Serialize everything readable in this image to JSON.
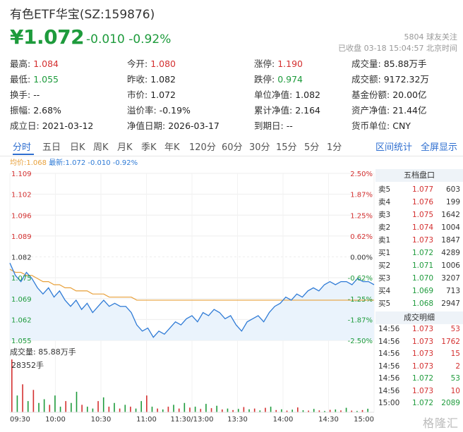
{
  "header": {
    "title": "有色ETF华宝(SZ:159876)",
    "price": "¥1.072",
    "change": "-0.010  -0.92%",
    "follow": "5804 球友关注",
    "status": "已收盘 03-18 15:04:57 北京时间"
  },
  "stats": [
    [
      {
        "label": "最高:",
        "value": "1.084",
        "color": "red"
      },
      {
        "label": "今开:",
        "value": "1.080",
        "color": "red"
      },
      {
        "label": "涨停:",
        "value": "1.190",
        "color": "red"
      },
      {
        "label": "成交量:",
        "value": "85.88万手",
        "color": ""
      }
    ],
    [
      {
        "label": "最低:",
        "value": "1.055",
        "color": "green"
      },
      {
        "label": "昨收:",
        "value": "1.082",
        "color": ""
      },
      {
        "label": "跌停:",
        "value": "0.974",
        "color": "green"
      },
      {
        "label": "成交额:",
        "value": "9172.32万",
        "color": ""
      }
    ],
    [
      {
        "label": "换手:",
        "value": "--",
        "color": ""
      },
      {
        "label": "市价:",
        "value": "1.072",
        "color": ""
      },
      {
        "label": "单位净值:",
        "value": "1.082",
        "color": ""
      },
      {
        "label": "基金份额:",
        "value": "20.00亿",
        "color": ""
      }
    ],
    [
      {
        "label": "振幅:",
        "value": "2.68%",
        "color": ""
      },
      {
        "label": "溢价率:",
        "value": "-0.19%",
        "color": ""
      },
      {
        "label": "累计净值:",
        "value": "2.164",
        "color": ""
      },
      {
        "label": "资产净值:",
        "value": "21.44亿",
        "color": ""
      }
    ],
    [
      {
        "label": "成立日:",
        "value": "2021-03-12",
        "color": ""
      },
      {
        "label": "净值日期:",
        "value": "2026-03-17",
        "color": ""
      },
      {
        "label": "到期日:",
        "value": "--",
        "color": ""
      },
      {
        "label": "货币单位:",
        "value": "CNY",
        "color": ""
      }
    ]
  ],
  "tabs": [
    "分时",
    "五日",
    "日K",
    "周K",
    "月K",
    "季K",
    "年K",
    "120分",
    "60分",
    "30分",
    "15分",
    "5分",
    "1分"
  ],
  "tabs_right": [
    "区间统计",
    "全屏显示"
  ],
  "avg_bar": {
    "avg": "均价:1.068",
    "latest": "最新:1.072 -0.010 -0.92%"
  },
  "chart_data": {
    "type": "line",
    "price_ticks": [
      "1.109",
      "1.102",
      "1.096",
      "1.089",
      "1.082",
      "1.075",
      "1.069",
      "1.062",
      "1.055"
    ],
    "pct_ticks": [
      "2.50%",
      "1.87%",
      "1.25%",
      "0.62%",
      "0.00%",
      "-0.62%",
      "-1.25%",
      "-1.87%",
      "-2.50%"
    ],
    "ylim": [
      1.055,
      1.109
    ],
    "prev_close": 1.082,
    "time_ticks": [
      "09:30",
      "10:00",
      "10:30",
      "11:00",
      "11:30/13:00",
      "13:30",
      "14:00",
      "14:30",
      "15:00"
    ],
    "series": [
      {
        "name": "最新",
        "values": [
          1.08,
          1.076,
          1.074,
          1.077,
          1.075,
          1.072,
          1.07,
          1.072,
          1.069,
          1.071,
          1.068,
          1.066,
          1.068,
          1.065,
          1.067,
          1.064,
          1.066,
          1.068,
          1.066,
          1.067,
          1.066,
          1.066,
          1.064,
          1.06,
          1.058,
          1.059,
          1.056,
          1.058,
          1.057,
          1.059,
          1.061,
          1.06,
          1.062,
          1.063,
          1.061,
          1.064,
          1.063,
          1.065,
          1.064,
          1.062,
          1.063,
          1.06,
          1.058,
          1.061,
          1.062,
          1.063,
          1.061,
          1.064,
          1.066,
          1.067,
          1.069,
          1.068,
          1.07,
          1.069,
          1.071,
          1.072,
          1.071,
          1.073,
          1.074,
          1.073,
          1.074,
          1.074,
          1.073,
          1.075,
          1.074,
          1.074,
          1.073
        ]
      },
      {
        "name": "均价",
        "values": [
          1.078,
          1.077,
          1.077,
          1.076,
          1.076,
          1.075,
          1.074,
          1.074,
          1.073,
          1.073,
          1.072,
          1.072,
          1.071,
          1.071,
          1.071,
          1.07,
          1.07,
          1.07,
          1.069,
          1.069,
          1.069,
          1.069,
          1.069,
          1.068,
          1.068,
          1.068,
          1.068,
          1.068,
          1.068,
          1.068,
          1.068,
          1.068,
          1.068,
          1.068,
          1.068,
          1.068,
          1.068,
          1.068,
          1.068,
          1.068,
          1.068,
          1.068,
          1.068,
          1.068,
          1.068,
          1.068,
          1.068,
          1.068,
          1.068,
          1.068,
          1.068,
          1.068,
          1.068,
          1.068,
          1.068,
          1.068,
          1.068,
          1.068,
          1.068,
          1.068,
          1.068,
          1.068,
          1.068,
          1.068,
          1.068,
          1.068,
          1.068
        ]
      }
    ],
    "volume_label": "成交量: 85.88万手",
    "volume_max": "28352手",
    "volume_values": [
      28352,
      9000,
      15000,
      6000,
      12000,
      5000,
      7000,
      4000,
      9000,
      3000,
      6000,
      5000,
      11000,
      4000,
      3000,
      2000,
      6000,
      8000,
      3000,
      5000,
      2000,
      4000,
      3000,
      2000,
      6000,
      9000,
      3000,
      2000,
      1500,
      3000,
      4000,
      2000,
      5000,
      2500,
      3000,
      1800,
      4500,
      2200,
      3500,
      1500,
      2000,
      1200,
      1800,
      2800,
      1600,
      2000,
      1000,
      2400,
      3000,
      1200,
      1600,
      900,
      1400,
      2600,
      1100,
      900,
      1800,
      1000,
      700,
      1300,
      1500,
      1000,
      2400,
      900,
      700,
      1200,
      1900
    ],
    "volume_colors": [
      "red",
      "green",
      "red",
      "green",
      "red",
      "green",
      "green",
      "red",
      "green",
      "green",
      "red",
      "green",
      "green",
      "red",
      "green",
      "green",
      "red",
      "green",
      "red",
      "green",
      "red",
      "green",
      "red",
      "green",
      "green",
      "red",
      "green",
      "red",
      "green",
      "red",
      "green",
      "red",
      "green",
      "red",
      "green",
      "red",
      "green",
      "red",
      "green",
      "red",
      "green",
      "red",
      "green",
      "red",
      "green",
      "red",
      "green",
      "red",
      "green",
      "red",
      "green",
      "red",
      "green",
      "red",
      "green",
      "red",
      "green",
      "red",
      "green",
      "red",
      "green",
      "red",
      "green",
      "red",
      "green",
      "red",
      "green"
    ]
  },
  "orderbook": {
    "title": "五档盘口",
    "rows": [
      {
        "side": "卖5",
        "price": "1.077",
        "vol": "603",
        "color": "red"
      },
      {
        "side": "卖4",
        "price": "1.076",
        "vol": "199",
        "color": "red"
      },
      {
        "side": "卖3",
        "price": "1.075",
        "vol": "1642",
        "color": "red"
      },
      {
        "side": "卖2",
        "price": "1.074",
        "vol": "1004",
        "color": "red"
      },
      {
        "side": "卖1",
        "price": "1.073",
        "vol": "1847",
        "color": "red"
      },
      {
        "side": "买1",
        "price": "1.072",
        "vol": "4289",
        "color": "green"
      },
      {
        "side": "买2",
        "price": "1.071",
        "vol": "1006",
        "color": "green"
      },
      {
        "side": "买3",
        "price": "1.070",
        "vol": "3207",
        "color": "green"
      },
      {
        "side": "买4",
        "price": "1.069",
        "vol": "713",
        "color": "green"
      },
      {
        "side": "买5",
        "price": "1.068",
        "vol": "2947",
        "color": "green"
      }
    ],
    "trades_title": "成交明细",
    "trades": [
      {
        "time": "14:56",
        "price": "1.073",
        "vol": "53",
        "color": "red"
      },
      {
        "time": "14:56",
        "price": "1.073",
        "vol": "1762",
        "color": "red"
      },
      {
        "time": "14:56",
        "price": "1.073",
        "vol": "15",
        "color": "red"
      },
      {
        "time": "14:56",
        "price": "1.073",
        "vol": "2",
        "color": "red"
      },
      {
        "time": "14:56",
        "price": "1.072",
        "vol": "53",
        "color": "green"
      },
      {
        "time": "14:56",
        "price": "1.073",
        "vol": "10",
        "color": "red"
      },
      {
        "time": "15:00",
        "price": "1.072",
        "vol": "2089",
        "color": "green"
      }
    ]
  },
  "watermark": "格隆汇",
  "colors": {
    "up": "#d43030",
    "down": "#1e9b3c",
    "accent": "#2f6fd0",
    "price_line": "#2f7bd6",
    "avg_line": "#e8a03a"
  }
}
